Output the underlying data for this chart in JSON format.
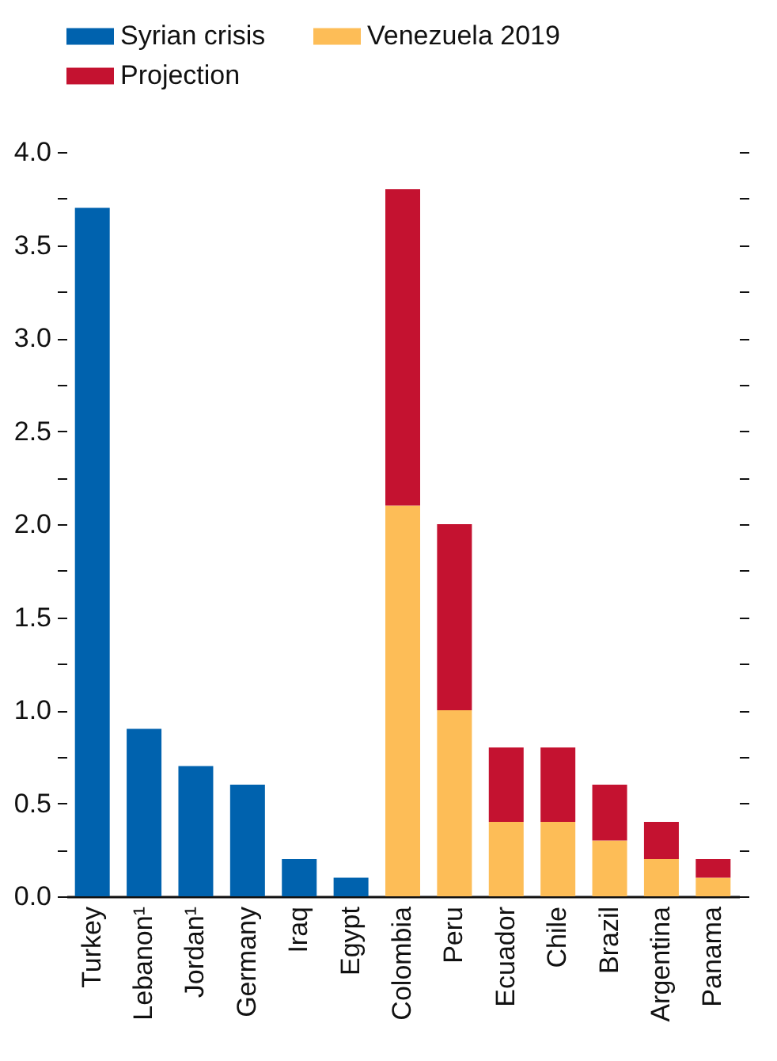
{
  "chart_data": {
    "type": "bar",
    "stacked": true,
    "categories": [
      "Turkey",
      "Lebanon¹",
      "Jordan¹",
      "Germany",
      "Iraq",
      "Egypt",
      "Colombia",
      "Peru",
      "Ecuador",
      "Chile",
      "Brazil",
      "Argentina",
      "Panama"
    ],
    "series": [
      {
        "name": "Syrian crisis",
        "color": "#0062ae",
        "values": [
          3.7,
          0.9,
          0.7,
          0.6,
          0.2,
          0.1,
          null,
          null,
          null,
          null,
          null,
          null,
          null
        ]
      },
      {
        "name": "Venezuela 2019",
        "color": "#fdbd57",
        "values": [
          null,
          null,
          null,
          null,
          null,
          null,
          2.1,
          1.0,
          0.4,
          0.4,
          0.3,
          0.2,
          0.1
        ]
      },
      {
        "name": "Projection",
        "color": "#c41230",
        "values": [
          null,
          null,
          null,
          null,
          null,
          null,
          1.7,
          1.0,
          0.4,
          0.4,
          0.3,
          0.2,
          0.1
        ]
      }
    ],
    "ylim": [
      0,
      4
    ],
    "yticks": [
      {
        "value": 0,
        "label": "0.0"
      },
      {
        "value": 0.25,
        "label": null
      },
      0.5,
      {
        "value": 0.75,
        "label": null
      },
      {
        "value": 1,
        "label": "1.0"
      },
      {
        "value": 1.25,
        "label": null
      },
      1.5,
      {
        "value": 1.75,
        "label": null
      },
      {
        "value": 2,
        "label": "2.0"
      },
      {
        "value": 2.25,
        "label": null
      },
      2.5,
      {
        "value": 2.75,
        "label": null
      },
      {
        "value": 3,
        "label": "3.0"
      },
      {
        "value": 3.25,
        "label": null
      },
      3.5,
      {
        "value": 3.75,
        "label": null
      },
      {
        "value": 4,
        "label": "4.0"
      }
    ],
    "grid": false,
    "legend": "top"
  }
}
